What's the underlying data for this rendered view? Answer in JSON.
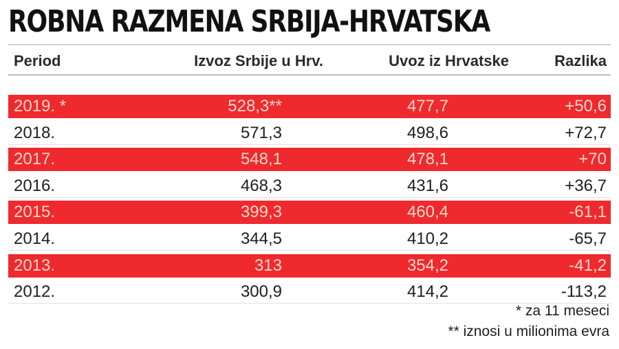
{
  "title": "ROBNA RAZMENA SRBIJA-HRVATSKA",
  "header": {
    "period": "Period",
    "izvoz": "Izvoz Srbije u Hrv.",
    "uvoz": "Uvoz iz Hrvatske",
    "razlika": "Razlika"
  },
  "chart_data": {
    "type": "table",
    "title": "ROBNA RAZMENA SRBIJA-HRVATSKA",
    "columns": [
      "Period",
      "Izvoz Srbije u Hrv.",
      "Uvoz iz Hrvatske",
      "Razlika"
    ],
    "rows": [
      {
        "period": "2019. *",
        "izvoz": "528,3**",
        "uvoz": "477,7",
        "razlika": "+50,6"
      },
      {
        "period": "2018.",
        "izvoz": "571,3",
        "uvoz": "498,6",
        "razlika": "+72,7"
      },
      {
        "period": "2017.",
        "izvoz": "548,1",
        "uvoz": "478,1",
        "razlika": "+70"
      },
      {
        "period": "2016.",
        "izvoz": "468,3",
        "uvoz": "431,6",
        "razlika": "+36,7"
      },
      {
        "period": "2015.",
        "izvoz": "399,3",
        "uvoz": "460,4",
        "razlika": "-61,1"
      },
      {
        "period": "2014.",
        "izvoz": "344,5",
        "uvoz": "410,2",
        "razlika": "-65,7"
      },
      {
        "period": "2013.",
        "izvoz": "313",
        "uvoz": "354,2",
        "razlika": "-41,2"
      },
      {
        "period": "2012.",
        "izvoz": "300,9",
        "uvoz": "414,2",
        "razlika": "-113,2"
      }
    ],
    "row_colors": [
      "#ee2a2f",
      "#ffffff"
    ]
  },
  "notes": {
    "note1": "* za 11 meseci",
    "note2": "** iznosi u milionima evra"
  }
}
